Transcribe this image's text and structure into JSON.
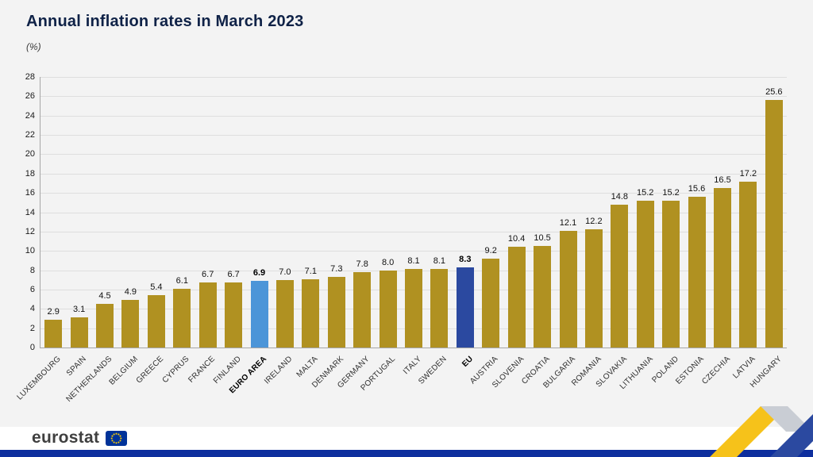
{
  "header": {
    "title": "Annual inflation rates in March 2023",
    "subtitle": "(%)"
  },
  "chart_data": {
    "type": "bar",
    "title": "Annual inflation rates in March 2023",
    "ylabel": "(%)",
    "ylim": [
      0,
      28
    ],
    "ytick_step": 2,
    "yticks": [
      0,
      2,
      4,
      6,
      8,
      10,
      12,
      14,
      16,
      18,
      20,
      22,
      24,
      26,
      28
    ],
    "grid": true,
    "categories": [
      "LUXEMBOURG",
      "SPAIN",
      "NETHERLANDS",
      "BELGIUM",
      "GREECE",
      "CYPRUS",
      "FRANCE",
      "FINLAND",
      "EURO AREA",
      "IRELAND",
      "MALTA",
      "DENMARK",
      "GERMANY",
      "PORTUGAL",
      "ITALY",
      "SWEDEN",
      "EU",
      "AUSTRIA",
      "SLOVENIA",
      "CROATIA",
      "BULGARIA",
      "ROMANIA",
      "SLOVAKIA",
      "LITHUANIA",
      "POLAND",
      "ESTONIA",
      "CZECHIA",
      "LATVIA",
      "HUNGARY"
    ],
    "values": [
      2.9,
      3.1,
      4.5,
      4.9,
      5.4,
      6.1,
      6.7,
      6.7,
      6.9,
      7.0,
      7.1,
      7.3,
      7.8,
      8.0,
      8.1,
      8.1,
      8.3,
      9.2,
      10.4,
      10.5,
      12.1,
      12.2,
      14.8,
      15.2,
      15.2,
      15.6,
      16.5,
      17.2,
      25.6
    ],
    "special_bars": [
      {
        "category": "EURO AREA",
        "color_key": "bar_euro_area"
      },
      {
        "category": "EU",
        "color_key": "bar_eu"
      }
    ]
  },
  "footer": {
    "brand": "eurostat"
  },
  "colors": {
    "background": "#F3F3F3",
    "title_text": "#0F2247",
    "subtitle_text": "#3C3C3C",
    "axis_text": "#1A1A1A",
    "bar_default": "#B09121",
    "bar_euro_area": "#4C95D8",
    "bar_eu": "#2B49A0",
    "grid_line": "#DEDEDE",
    "axis_line": "#A6A6A6",
    "footer_background": "#FFFFFF",
    "footer_bar": "#0E2F9E",
    "logo_text": "#3F3F3F",
    "flag_blue": "#003399",
    "flag_yellow": "#FFCC00",
    "ribbon_yellow": "#F6C21A",
    "ribbon_gray": "#C9CDD4",
    "ribbon_blue": "#2B49A0"
  }
}
